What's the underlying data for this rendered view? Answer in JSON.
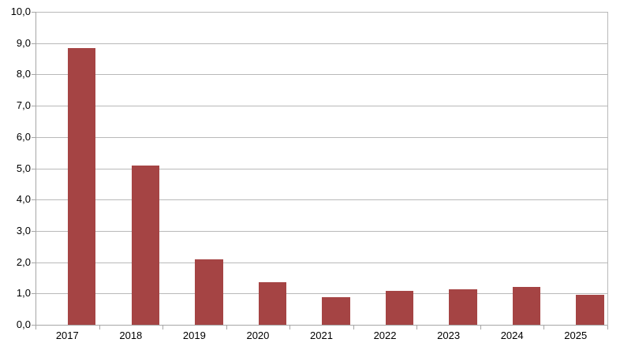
{
  "chart_data": {
    "type": "bar",
    "title": "",
    "xlabel": "",
    "ylabel": "",
    "categories": [
      "2017",
      "2018",
      "2019",
      "2020",
      "2021",
      "2022",
      "2023",
      "2024",
      "2025"
    ],
    "values": [
      8.85,
      5.1,
      2.1,
      1.37,
      0.87,
      1.08,
      1.13,
      1.21,
      0.96
    ],
    "ylim": [
      0,
      10
    ],
    "ytick_interval": 1,
    "ytick_labels": [
      "0,0",
      "1,0",
      "2,0",
      "3,0",
      "4,0",
      "5,0",
      "6,0",
      "7,0",
      "8,0",
      "9,0",
      "10,0"
    ],
    "decimal_separator": ",",
    "grid": "horizontal",
    "legend": "none",
    "colors": {
      "bar": "#a54444",
      "gridline": "#b9b9b9",
      "axis": "#a6a6a6",
      "text": "#000000",
      "background": "#ffffff"
    }
  }
}
